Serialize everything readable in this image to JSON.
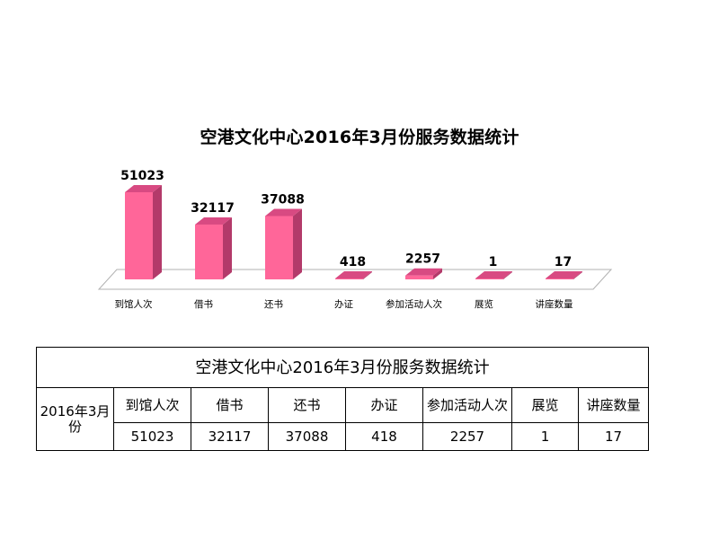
{
  "chart_data": {
    "type": "bar",
    "title": "空港文化中心2016年3月份服务数据统计",
    "categories": [
      "到馆人次",
      "借书",
      "还书",
      "办证",
      "参加活动人次",
      "展览",
      "讲座数量"
    ],
    "values": [
      51023,
      32117,
      37088,
      418,
      2257,
      1,
      17
    ],
    "ylim": [
      0,
      51023
    ],
    "grid": false,
    "legend": "none",
    "colors": {
      "front": "#ff6699",
      "side": "#b33a6a",
      "top": "#d84a82",
      "floor_edge": "#b0b0b0"
    }
  },
  "table": {
    "title": "空港文化中心2016年3月份服务数据统计",
    "row_header": "2016年3月份",
    "headers": [
      "到馆人次",
      "借书",
      "还书",
      "办证",
      "参加活动人次",
      "展览",
      "讲座数量"
    ],
    "values": [
      "51023",
      "32117",
      "37088",
      "418",
      "2257",
      "1",
      "17"
    ]
  }
}
